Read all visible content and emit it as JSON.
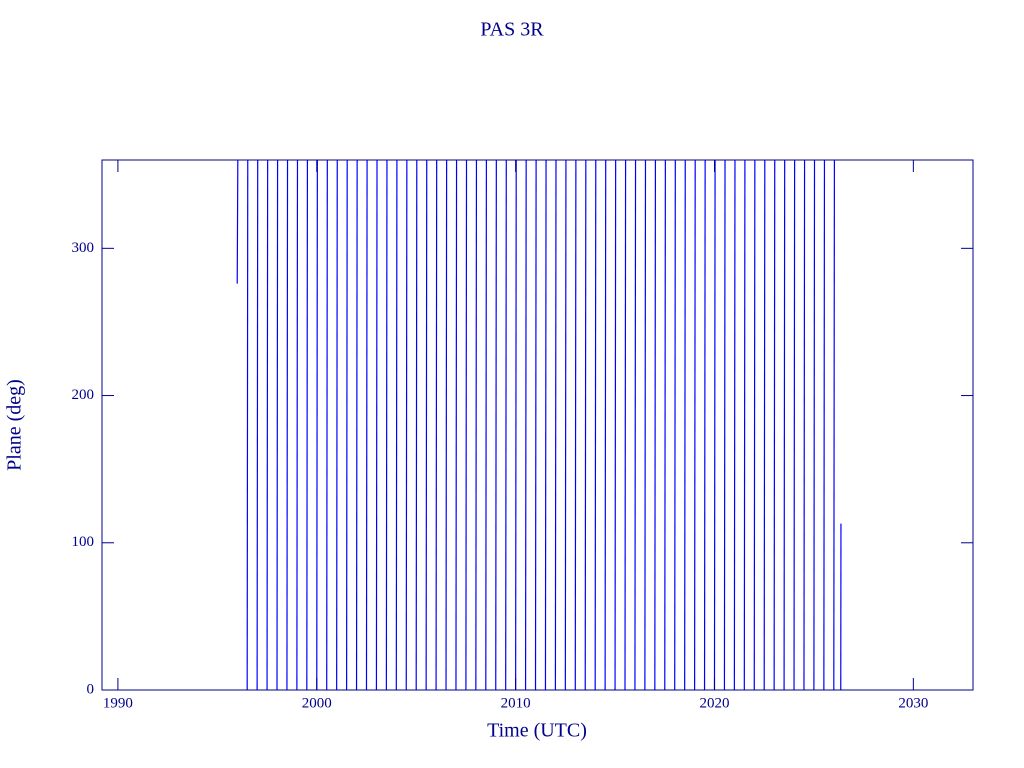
{
  "chart_data": {
    "type": "line",
    "title": "PAS 3R",
    "x_label": "Time (UTC)",
    "y_label": "Plane (deg)",
    "xlim": [
      1989.2,
      2033.0
    ],
    "ylim": [
      0,
      360
    ],
    "xticks": [
      1990,
      2000,
      2010,
      2020,
      2030
    ],
    "yticks": [
      0,
      100,
      200,
      300
    ],
    "axis_color": "#00008b",
    "series": [
      {
        "name": "PAS 3R",
        "color": "#0000ff",
        "x": [
          1996,
          1996.03,
          null,
          1996.5,
          1996.53,
          null,
          1997,
          1997.03,
          null,
          1997.5,
          1997.53,
          null,
          1998,
          1998.03,
          null,
          1998.5,
          1998.53,
          null,
          1999,
          1999.03,
          null,
          1999.5,
          1999.53,
          null,
          2000,
          2000.03,
          null,
          2000.5,
          2000.53,
          null,
          2001,
          2001.03,
          null,
          2001.5,
          2001.53,
          null,
          2002,
          2002.03,
          null,
          2002.5,
          2002.53,
          null,
          2003,
          2003.03,
          null,
          2003.5,
          2003.53,
          null,
          2004,
          2004.03,
          null,
          2004.5,
          2004.53,
          null,
          2005,
          2005.03,
          null,
          2005.5,
          2005.53,
          null,
          2006,
          2006.03,
          null,
          2006.5,
          2006.53,
          null,
          2007,
          2007.03,
          null,
          2007.5,
          2007.53,
          null,
          2008,
          2008.03,
          null,
          2008.5,
          2008.53,
          null,
          2009,
          2009.03,
          null,
          2009.5,
          2009.53,
          null,
          2010,
          2010.03,
          null,
          2010.5,
          2010.53,
          null,
          2011,
          2011.03,
          null,
          2011.5,
          2011.53,
          null,
          2012,
          2012.03,
          null,
          2012.5,
          2012.53,
          null,
          2013,
          2013.03,
          null,
          2013.5,
          2013.53,
          null,
          2014,
          2014.03,
          null,
          2014.5,
          2014.53,
          null,
          2015,
          2015.03,
          null,
          2015.5,
          2015.53,
          null,
          2016,
          2016.03,
          null,
          2016.5,
          2016.53,
          null,
          2017,
          2017.03,
          null,
          2017.5,
          2017.53,
          null,
          2018,
          2018.03,
          null,
          2018.5,
          2018.53,
          null,
          2019,
          2019.03,
          null,
          2019.5,
          2019.53,
          null,
          2020,
          2020.03,
          null,
          2020.5,
          2020.53,
          null,
          2021,
          2021.03,
          null,
          2021.5,
          2021.53,
          null,
          2022,
          2022.03,
          null,
          2022.5,
          2022.53,
          null,
          2023,
          2023.03,
          null,
          2023.5,
          2023.53,
          null,
          2024,
          2024.03,
          null,
          2024.5,
          2024.53,
          null,
          2025,
          2025.03,
          null,
          2025.5,
          2025.53,
          null,
          2026,
          2026.03,
          null,
          2026.35,
          2026.36
        ],
        "values": [
          276,
          360,
          null,
          0,
          360,
          null,
          0,
          360,
          null,
          0,
          360,
          null,
          0,
          360,
          null,
          0,
          360,
          null,
          0,
          360,
          null,
          0,
          360,
          null,
          0,
          360,
          null,
          0,
          360,
          null,
          0,
          360,
          null,
          0,
          360,
          null,
          0,
          360,
          null,
          0,
          360,
          null,
          0,
          360,
          null,
          0,
          360,
          null,
          0,
          360,
          null,
          0,
          360,
          null,
          0,
          360,
          null,
          0,
          360,
          null,
          0,
          360,
          null,
          0,
          360,
          null,
          0,
          360,
          null,
          0,
          360,
          null,
          0,
          360,
          null,
          0,
          360,
          null,
          0,
          360,
          null,
          0,
          360,
          null,
          0,
          360,
          null,
          0,
          360,
          null,
          0,
          360,
          null,
          0,
          360,
          null,
          0,
          360,
          null,
          0,
          360,
          null,
          0,
          360,
          null,
          0,
          360,
          null,
          0,
          360,
          null,
          0,
          360,
          null,
          0,
          360,
          null,
          0,
          360,
          null,
          0,
          360,
          null,
          0,
          360,
          null,
          0,
          360,
          null,
          0,
          360,
          null,
          0,
          360,
          null,
          0,
          360,
          null,
          0,
          360,
          null,
          0,
          360,
          null,
          0,
          360,
          null,
          0,
          360,
          null,
          0,
          360,
          null,
          0,
          360,
          null,
          0,
          360,
          null,
          0,
          360,
          null,
          0,
          360,
          null,
          0,
          360,
          null,
          0,
          360,
          null,
          0,
          360,
          null,
          0,
          360,
          null,
          0,
          360,
          null,
          0,
          360,
          null,
          0,
          113
        ]
      }
    ]
  }
}
